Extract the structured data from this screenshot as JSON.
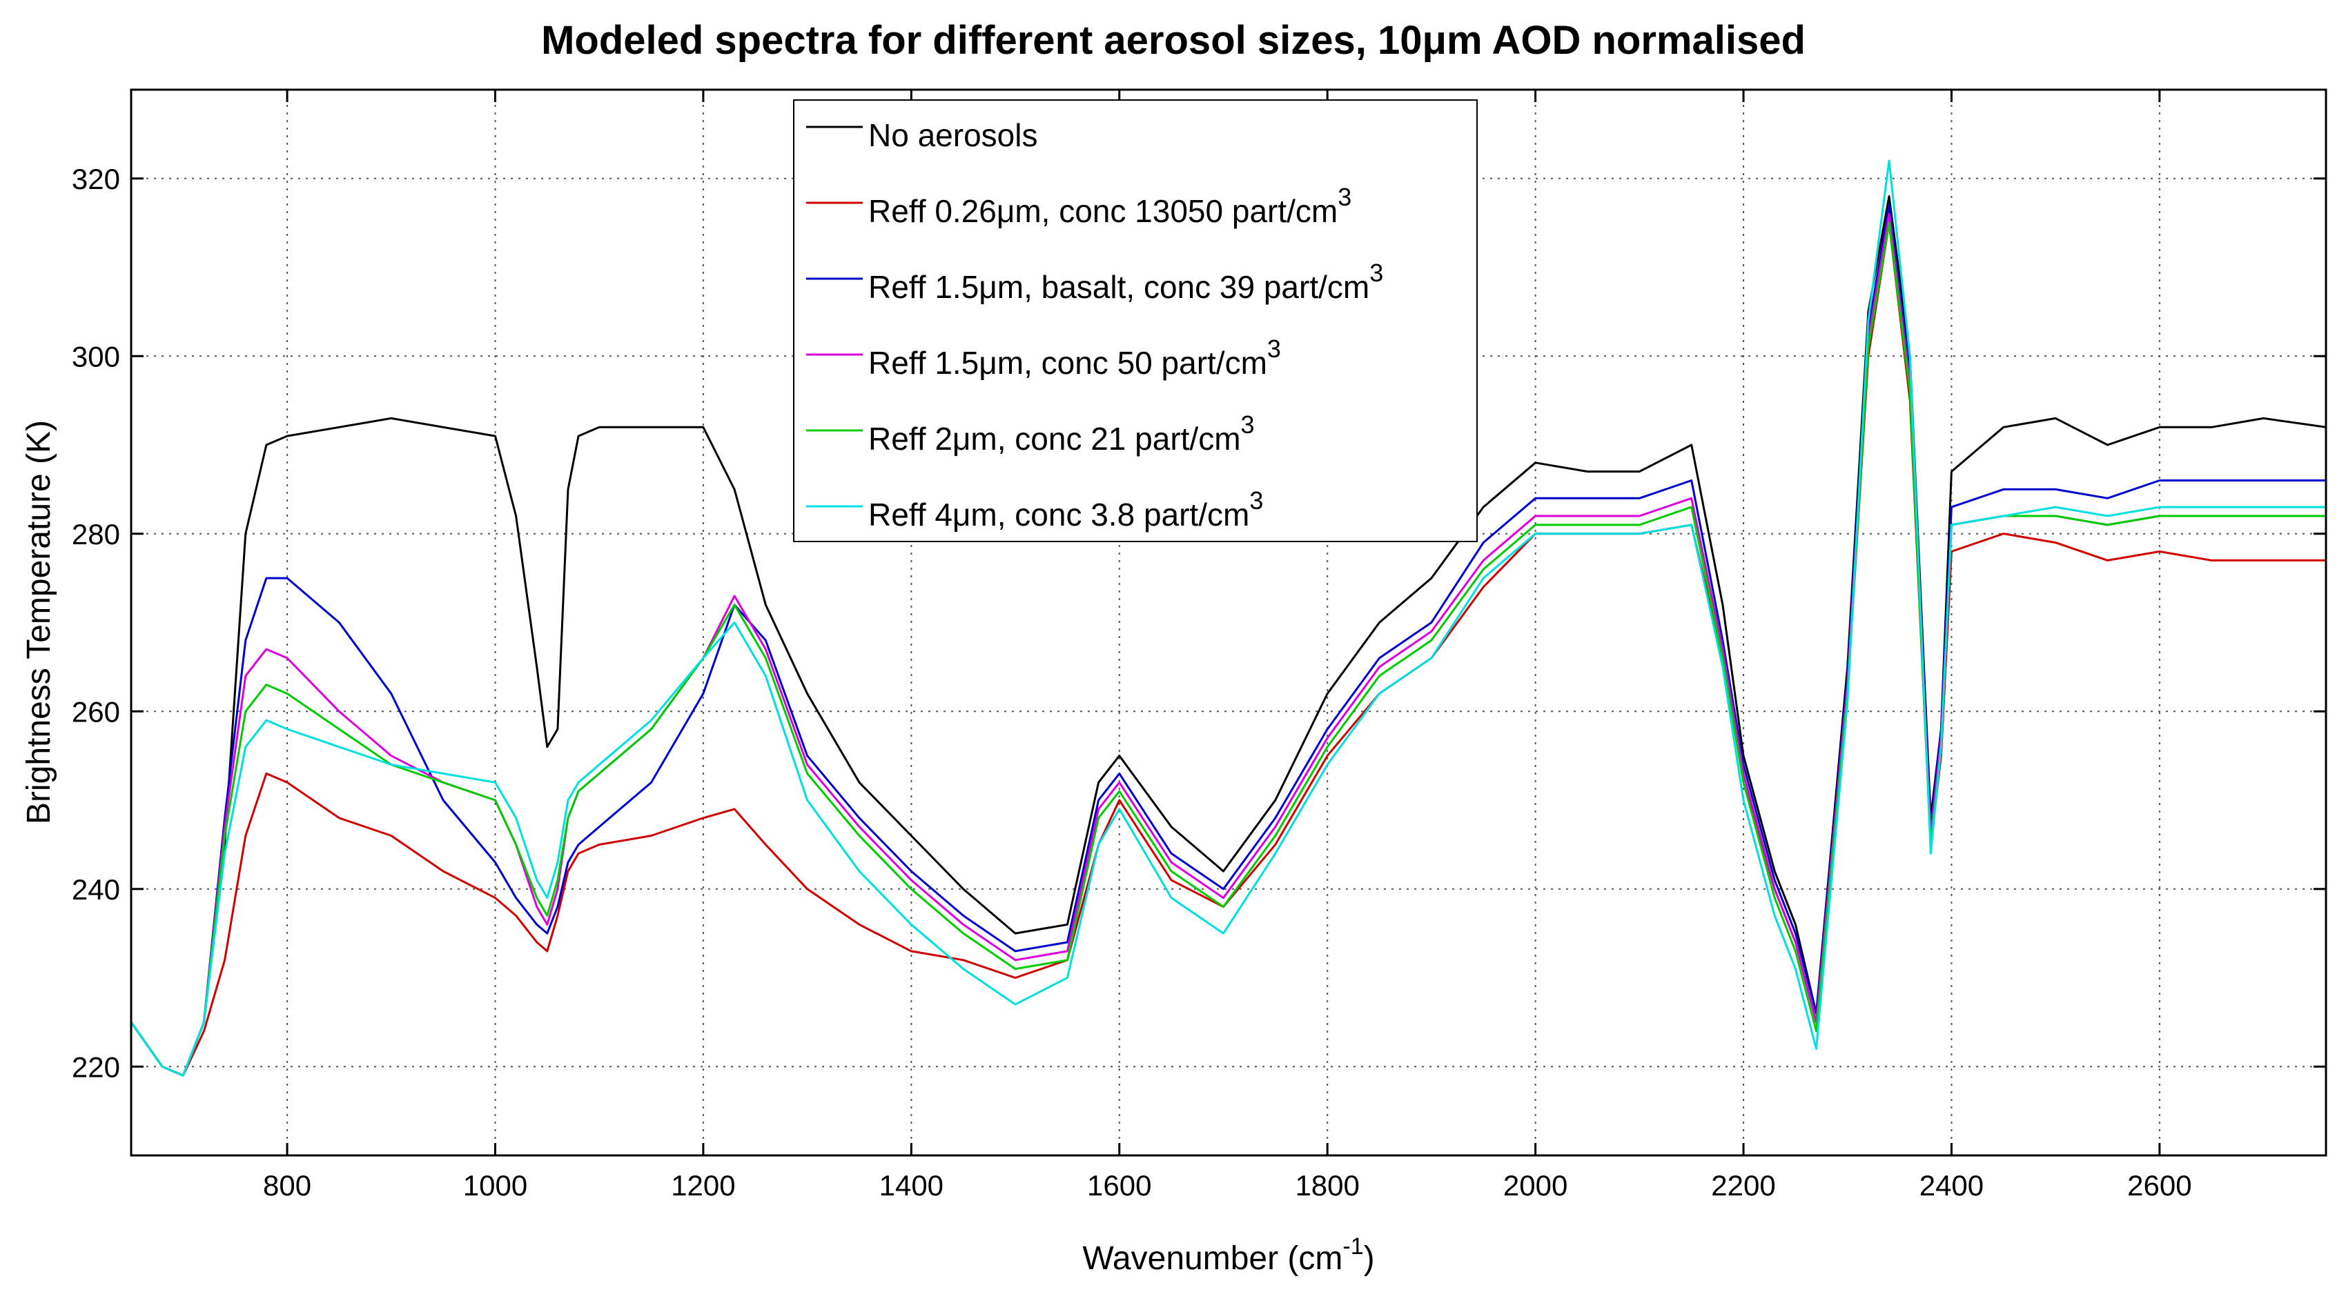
{
  "chart_data": {
    "type": "line",
    "title": "Modeled spectra for different aerosol sizes, 10μm AOD normalised",
    "xlabel": "Wavenumber (cm",
    "xlabel_sup": "-1",
    "xlabel_end": ")",
    "ylabel": "Brightness Temperature (K)",
    "xlim": [
      650,
      2760
    ],
    "ylim": [
      210,
      330
    ],
    "grid": true,
    "xticks": [
      800,
      1000,
      1200,
      1400,
      1600,
      1800,
      2000,
      2200,
      2400,
      2600
    ],
    "yticks": [
      220,
      240,
      260,
      280,
      300,
      320
    ],
    "legend_position": "top-center",
    "series": [
      {
        "name": "No aerosols",
        "legend_label": "No aerosols",
        "legend_sup": "",
        "color": "#000000",
        "x": [
          650,
          680,
          700,
          720,
          740,
          760,
          780,
          800,
          850,
          900,
          950,
          1000,
          1020,
          1040,
          1050,
          1060,
          1070,
          1080,
          1100,
          1150,
          1200,
          1230,
          1260,
          1300,
          1350,
          1400,
          1450,
          1500,
          1550,
          1580,
          1600,
          1650,
          1700,
          1750,
          1800,
          1850,
          1900,
          1950,
          2000,
          2050,
          2100,
          2150,
          2180,
          2200,
          2230,
          2250,
          2270,
          2300,
          2320,
          2340,
          2360,
          2380,
          2390,
          2400,
          2450,
          2500,
          2550,
          2600,
          2650,
          2700,
          2760
        ],
        "y": [
          225,
          220,
          219,
          225,
          245,
          280,
          290,
          291,
          292,
          293,
          292,
          291,
          282,
          265,
          256,
          258,
          285,
          291,
          292,
          292,
          292,
          285,
          272,
          262,
          252,
          246,
          240,
          235,
          236,
          252,
          255,
          247,
          242,
          250,
          262,
          270,
          275,
          283,
          288,
          287,
          287,
          290,
          272,
          255,
          242,
          236,
          226,
          265,
          305,
          318,
          300,
          248,
          258,
          287,
          292,
          293,
          290,
          292,
          292,
          293,
          292
        ]
      },
      {
        "name": "Reff 0.26μm, conc 13050 part/cm3",
        "legend_label": "Reff 0.26μm, conc 13050 part/cm",
        "legend_sup": "3",
        "color": "#d00000",
        "x": [
          650,
          680,
          700,
          720,
          740,
          760,
          780,
          800,
          850,
          900,
          950,
          1000,
          1020,
          1040,
          1050,
          1060,
          1070,
          1080,
          1100,
          1150,
          1200,
          1230,
          1260,
          1300,
          1350,
          1400,
          1450,
          1500,
          1550,
          1580,
          1600,
          1650,
          1700,
          1750,
          1800,
          1850,
          1900,
          1950,
          2000,
          2050,
          2100,
          2150,
          2180,
          2200,
          2230,
          2250,
          2270,
          2300,
          2320,
          2340,
          2360,
          2380,
          2390,
          2400,
          2450,
          2500,
          2550,
          2600,
          2650,
          2700,
          2760
        ],
        "y": [
          225,
          220,
          219,
          224,
          232,
          246,
          253,
          252,
          248,
          246,
          242,
          239,
          237,
          234,
          233,
          237,
          242,
          244,
          245,
          246,
          248,
          249,
          245,
          240,
          236,
          233,
          232,
          230,
          232,
          245,
          250,
          241,
          238,
          245,
          255,
          262,
          266,
          274,
          280,
          280,
          280,
          281,
          266,
          252,
          240,
          234,
          225,
          262,
          300,
          315,
          295,
          245,
          255,
          278,
          280,
          279,
          277,
          278,
          277,
          277,
          277
        ]
      },
      {
        "name": "Reff 1.5μm, basalt, conc 39 part/cm3",
        "legend_label": "Reff 1.5μm, basalt, conc 39 part/cm",
        "legend_sup": "3",
        "color": "#0000cc",
        "x": [
          650,
          680,
          700,
          720,
          740,
          760,
          780,
          800,
          850,
          900,
          950,
          1000,
          1020,
          1040,
          1050,
          1060,
          1070,
          1080,
          1100,
          1150,
          1200,
          1230,
          1260,
          1300,
          1350,
          1400,
          1450,
          1500,
          1550,
          1580,
          1600,
          1650,
          1700,
          1750,
          1800,
          1850,
          1900,
          1950,
          2000,
          2050,
          2100,
          2150,
          2180,
          2200,
          2230,
          2250,
          2270,
          2300,
          2320,
          2340,
          2360,
          2380,
          2390,
          2400,
          2450,
          2500,
          2550,
          2600,
          2650,
          2700,
          2760
        ],
        "y": [
          225,
          220,
          219,
          225,
          248,
          268,
          275,
          275,
          270,
          262,
          250,
          243,
          239,
          236,
          235,
          238,
          243,
          245,
          247,
          252,
          262,
          272,
          268,
          255,
          248,
          242,
          237,
          233,
          234,
          250,
          253,
          244,
          240,
          248,
          258,
          266,
          270,
          279,
          284,
          284,
          284,
          286,
          268,
          254,
          241,
          235,
          226,
          264,
          303,
          317,
          298,
          247,
          258,
          283,
          285,
          285,
          284,
          286,
          286,
          286,
          286
        ]
      },
      {
        "name": "Reff 1.5μm, conc 50 part/cm3",
        "legend_label": "Reff 1.5μm, conc 50 part/cm",
        "legend_sup": "3",
        "color": "#dd00dd",
        "x": [
          650,
          680,
          700,
          720,
          740,
          760,
          780,
          800,
          850,
          900,
          950,
          1000,
          1020,
          1040,
          1050,
          1060,
          1070,
          1080,
          1100,
          1150,
          1200,
          1230,
          1260,
          1300,
          1350,
          1400,
          1450,
          1500,
          1550,
          1580,
          1600,
          1650,
          1700,
          1750,
          1800,
          1850,
          1900,
          1950,
          2000,
          2050,
          2100,
          2150,
          2180,
          2200,
          2230,
          2250,
          2270,
          2300,
          2320,
          2340,
          2360,
          2380,
          2390,
          2400,
          2450,
          2500,
          2550,
          2600,
          2650,
          2700,
          2760
        ],
        "y": [
          225,
          220,
          219,
          225,
          247,
          264,
          267,
          266,
          260,
          255,
          252,
          250,
          245,
          238,
          236,
          240,
          248,
          251,
          253,
          258,
          266,
          273,
          267,
          254,
          247,
          241,
          236,
          232,
          233,
          249,
          252,
          243,
          239,
          247,
          257,
          265,
          269,
          277,
          282,
          282,
          282,
          284,
          267,
          253,
          240,
          234,
          225,
          263,
          302,
          316,
          297,
          246,
          257,
          281,
          282,
          282,
          281,
          282,
          282,
          282,
          282
        ]
      },
      {
        "name": "Reff 2μm, conc 21 part/cm3",
        "legend_label": "Reff 2μm, conc 21 part/cm",
        "legend_sup": "3",
        "color": "#00cc00",
        "x": [
          650,
          680,
          700,
          720,
          740,
          760,
          780,
          800,
          850,
          900,
          950,
          1000,
          1020,
          1040,
          1050,
          1060,
          1070,
          1080,
          1100,
          1150,
          1200,
          1230,
          1260,
          1300,
          1350,
          1400,
          1450,
          1500,
          1550,
          1580,
          1600,
          1650,
          1700,
          1750,
          1800,
          1850,
          1900,
          1950,
          2000,
          2050,
          2100,
          2150,
          2180,
          2200,
          2230,
          2250,
          2270,
          2300,
          2320,
          2340,
          2360,
          2380,
          2390,
          2400,
          2450,
          2500,
          2550,
          2600,
          2650,
          2700,
          2760
        ],
        "y": [
          225,
          220,
          219,
          225,
          246,
          260,
          263,
          262,
          258,
          254,
          252,
          250,
          245,
          239,
          237,
          241,
          248,
          251,
          253,
          258,
          266,
          272,
          266,
          253,
          246,
          240,
          235,
          231,
          232,
          248,
          251,
          242,
          238,
          246,
          256,
          264,
          268,
          276,
          281,
          281,
          281,
          283,
          266,
          252,
          239,
          233,
          224,
          262,
          301,
          315,
          296,
          245,
          256,
          281,
          282,
          282,
          281,
          282,
          282,
          282,
          282
        ]
      },
      {
        "name": "Reff 4μm, conc 3.8 part/cm3",
        "legend_label": "Reff 4μm, conc 3.8 part/cm",
        "legend_sup": "3",
        "color": "#00e0e0",
        "x": [
          650,
          680,
          700,
          720,
          740,
          760,
          780,
          800,
          850,
          900,
          950,
          1000,
          1020,
          1040,
          1050,
          1060,
          1070,
          1080,
          1100,
          1150,
          1200,
          1230,
          1260,
          1300,
          1350,
          1400,
          1450,
          1500,
          1550,
          1580,
          1600,
          1650,
          1700,
          1750,
          1800,
          1850,
          1900,
          1950,
          2000,
          2050,
          2100,
          2150,
          2180,
          2200,
          2230,
          2250,
          2270,
          2300,
          2320,
          2340,
          2360,
          2380,
          2390,
          2400,
          2450,
          2500,
          2550,
          2600,
          2650,
          2700,
          2760
        ],
        "y": [
          225,
          220,
          219,
          225,
          244,
          256,
          259,
          258,
          256,
          254,
          253,
          252,
          248,
          241,
          239,
          243,
          250,
          252,
          254,
          259,
          266,
          270,
          264,
          250,
          242,
          236,
          231,
          227,
          230,
          245,
          249,
          239,
          235,
          244,
          254,
          262,
          266,
          275,
          280,
          280,
          280,
          281,
          265,
          250,
          237,
          231,
          222,
          261,
          304,
          322,
          300,
          244,
          256,
          281,
          282,
          283,
          282,
          283,
          283,
          283,
          283
        ]
      }
    ]
  }
}
